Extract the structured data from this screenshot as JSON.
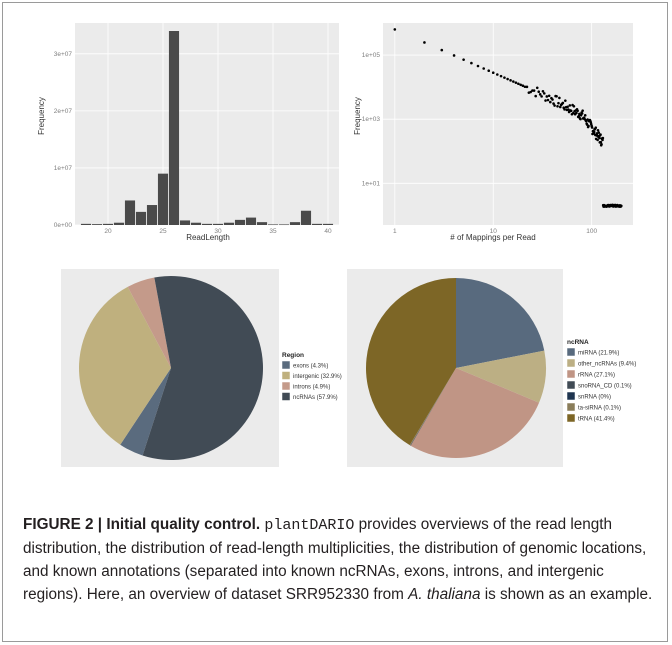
{
  "chart_data": [
    {
      "type": "bar",
      "xlabel": "ReadLength",
      "ylabel": "Frequency",
      "x": [
        18,
        19,
        20,
        21,
        22,
        23,
        24,
        25,
        26,
        27,
        28,
        29,
        30,
        31,
        32,
        33,
        34,
        35,
        36,
        37,
        38,
        39,
        40
      ],
      "values": [
        0.2,
        0.15,
        0.2,
        0.4,
        4.3,
        2.3,
        3.5,
        9.0,
        34.0,
        0.8,
        0.4,
        0.2,
        0.2,
        0.4,
        0.9,
        1.3,
        0.5,
        0.1,
        0.1,
        0.5,
        2.5,
        0.2,
        0.2
      ],
      "value_unit_note": "",
      "xlim": [
        17,
        41
      ],
      "ylim": [
        0,
        34
      ],
      "x_ticks": [
        "20",
        "25",
        "30",
        "35",
        "40"
      ],
      "x_tick_values": [
        20,
        25,
        30,
        35,
        40
      ],
      "y_ticks": [
        "0e+00",
        "1e+07",
        "2e+07",
        "3e+07"
      ],
      "y_tick_values": [
        0,
        10,
        20,
        30
      ],
      "grid": true
    },
    {
      "type": "scatter",
      "xlabel": "# of Mappings per Read",
      "ylabel": "Frequency",
      "x_ticks": [
        "1",
        "10",
        "100"
      ],
      "x_tick_values": [
        1,
        10,
        100
      ],
      "y_ticks": [
        "1e+05",
        "1e+03",
        "1e+01"
      ],
      "y_tick_values": [
        100000,
        1000,
        10
      ],
      "x_scale": "log",
      "y_scale": "log",
      "xlim_log10": [
        -0.12,
        2.42
      ],
      "ylim_log10": [
        -0.3,
        6.0
      ],
      "grid": true
    },
    {
      "type": "pie",
      "legend_title": "Region",
      "labels": [
        "exons (4.3%)",
        "intergenic (32.9%)",
        "introns (4.9%)",
        "ncRNAs (57.9%)"
      ],
      "values": [
        4.3,
        32.9,
        4.9,
        57.9
      ],
      "colors": [
        "#5a6b7e",
        "#bfb07e",
        "#c49a8a",
        "#414b55"
      ],
      "legend_position": "right"
    },
    {
      "type": "pie",
      "legend_title": "ncRNA",
      "labels": [
        "miRNA (21.9%)",
        "other_ncRNAs (9.4%)",
        "rRNA (27.1%)",
        "snoRNA_CD (0.1%)",
        "snRNA (0%)",
        "ta-siRNA (0.1%)",
        "tRNA (41.4%)"
      ],
      "values": [
        21.9,
        9.4,
        27.1,
        0.1,
        0.0,
        0.1,
        41.4
      ],
      "colors": [
        "#586a7e",
        "#bcaf84",
        "#c09585",
        "#414b55",
        "#1f3550",
        "#8a7d5a",
        "#7d6626"
      ],
      "legend_position": "right"
    }
  ],
  "caption": {
    "label": "FIGURE 2 | Initial quality control.",
    "tool_name": "plantDARIO",
    "text_part1": " provides overviews of the read length distribution, the distribution of read-length multiplicities, the distribution of genomic locations, and known annotations (separated into known ncRNAs, exons, introns, and intergenic regions). Here, an overview of dataset SRR952330 from ",
    "species": "A. thaliana",
    "text_part2": " is shown as an example."
  },
  "colors": {
    "panel_bg": "#ebebeb",
    "grid": "#ffffff",
    "bar": "#4a4a4a",
    "point": "#000000",
    "caption_text": "#231f20"
  }
}
